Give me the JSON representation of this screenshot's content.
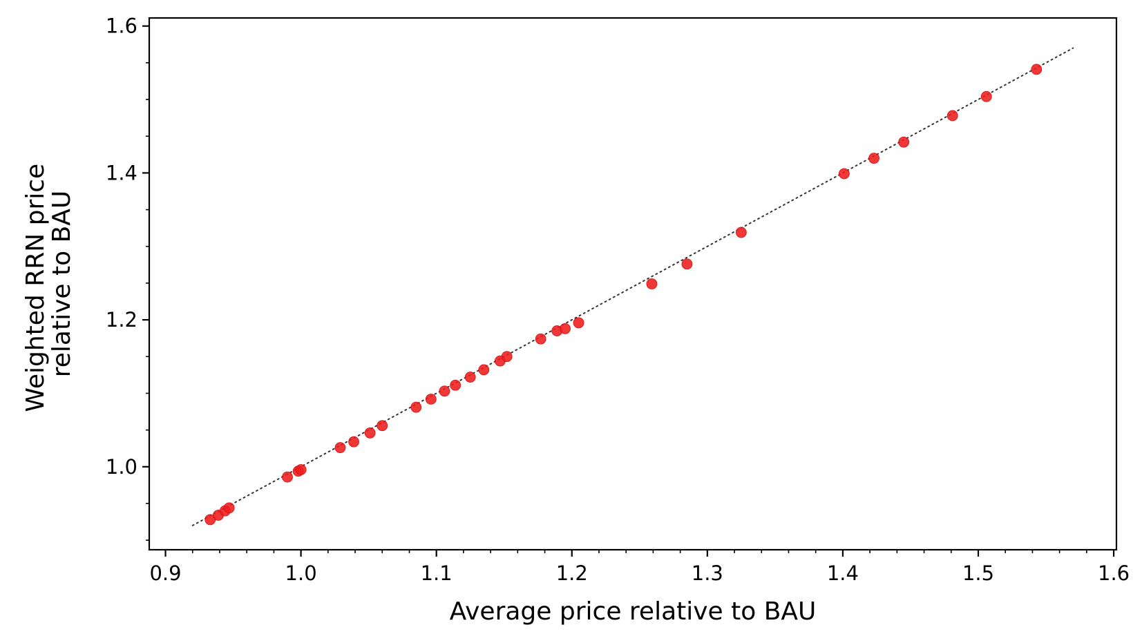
{
  "chart_data": {
    "type": "scatter",
    "xlabel": "Average price relative to BAU",
    "ylabel_lines": [
      "Weighted RRN price",
      "relative to BAU"
    ],
    "xlim": [
      0.888,
      1.602
    ],
    "ylim": [
      0.887,
      1.611
    ],
    "x_ticks": [
      {
        "value": 0.9,
        "label": "0.9"
      },
      {
        "value": 1.0,
        "label": "1.0"
      },
      {
        "value": 1.1,
        "label": "1.1"
      },
      {
        "value": 1.2,
        "label": "1.2"
      },
      {
        "value": 1.3,
        "label": "1.3"
      },
      {
        "value": 1.4,
        "label": "1.4"
      },
      {
        "value": 1.5,
        "label": "1.5"
      },
      {
        "value": 1.6,
        "label": "1.6"
      }
    ],
    "y_ticks": [
      {
        "value": 1.0,
        "label": "1.0"
      },
      {
        "value": 1.2,
        "label": "1.2"
      },
      {
        "value": 1.4,
        "label": "1.4"
      },
      {
        "value": 1.6,
        "label": "1.6"
      }
    ],
    "x_minor_step": 0.02,
    "y_minor_step": 0.05,
    "grid": false,
    "reference_line": {
      "style": "dotted",
      "color": "#333333",
      "x": [
        0.92,
        1.57
      ],
      "y": [
        0.92,
        1.57
      ]
    },
    "marker_color": "#ee1c1c",
    "points": [
      {
        "x": 0.933,
        "y": 0.928
      },
      {
        "x": 0.939,
        "y": 0.934
      },
      {
        "x": 0.944,
        "y": 0.94
      },
      {
        "x": 0.947,
        "y": 0.944
      },
      {
        "x": 0.99,
        "y": 0.986
      },
      {
        "x": 0.998,
        "y": 0.994
      },
      {
        "x": 1.0,
        "y": 0.996
      },
      {
        "x": 1.029,
        "y": 1.026
      },
      {
        "x": 1.039,
        "y": 1.034
      },
      {
        "x": 1.051,
        "y": 1.046
      },
      {
        "x": 1.06,
        "y": 1.056
      },
      {
        "x": 1.085,
        "y": 1.081
      },
      {
        "x": 1.096,
        "y": 1.092
      },
      {
        "x": 1.106,
        "y": 1.103
      },
      {
        "x": 1.114,
        "y": 1.111
      },
      {
        "x": 1.125,
        "y": 1.122
      },
      {
        "x": 1.135,
        "y": 1.132
      },
      {
        "x": 1.147,
        "y": 1.144
      },
      {
        "x": 1.152,
        "y": 1.15
      },
      {
        "x": 1.177,
        "y": 1.174
      },
      {
        "x": 1.189,
        "y": 1.185
      },
      {
        "x": 1.195,
        "y": 1.188
      },
      {
        "x": 1.205,
        "y": 1.196
      },
      {
        "x": 1.259,
        "y": 1.249
      },
      {
        "x": 1.285,
        "y": 1.276
      },
      {
        "x": 1.325,
        "y": 1.319
      },
      {
        "x": 1.401,
        "y": 1.399
      },
      {
        "x": 1.423,
        "y": 1.42
      },
      {
        "x": 1.445,
        "y": 1.442
      },
      {
        "x": 1.481,
        "y": 1.478
      },
      {
        "x": 1.506,
        "y": 1.504
      },
      {
        "x": 1.543,
        "y": 1.541
      }
    ]
  }
}
